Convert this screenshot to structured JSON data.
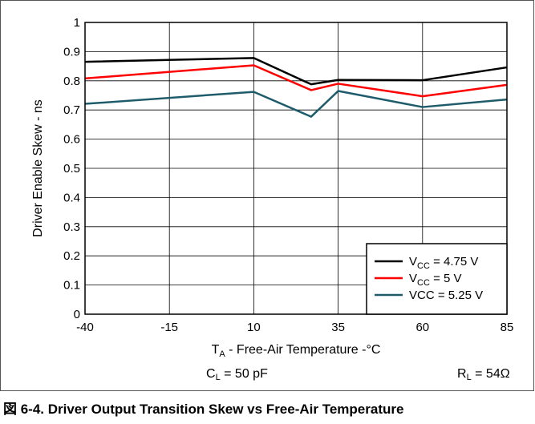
{
  "chart_data": {
    "type": "line",
    "title": "",
    "xlabel": {
      "main": "T",
      "sub": "A",
      "rest": " - Free-Air Temperature -°C"
    },
    "ylabel": "Driver Enable Skew - ns",
    "x": [
      -40,
      10,
      27,
      35,
      60,
      85
    ],
    "xticks": [
      -40,
      -15,
      10,
      35,
      60,
      85
    ],
    "yticks": [
      0,
      0.1,
      0.2,
      0.3,
      0.4,
      0.5,
      0.6,
      0.7,
      0.8,
      0.9,
      1
    ],
    "xlim": [
      -40,
      85
    ],
    "ylim": [
      0,
      1
    ],
    "grid": true,
    "legend_position": "bottom-right",
    "series": [
      {
        "legend": {
          "pre": "V",
          "sub": "CC",
          "post": " = 4.75 V"
        },
        "color": "#000000",
        "values": [
          0.865,
          0.878,
          0.788,
          0.803,
          0.802,
          0.846
        ]
      },
      {
        "legend": {
          "pre": "V",
          "sub": "CC",
          "post": " = 5 V"
        },
        "color": "#ff0000",
        "values": [
          0.808,
          0.853,
          0.768,
          0.79,
          0.747,
          0.786
        ]
      },
      {
        "legend": {
          "pre": "",
          "sub": "",
          "post": "VCC = 5.25 V"
        },
        "color": "#1f5c6b",
        "values": [
          0.721,
          0.762,
          0.677,
          0.765,
          0.71,
          0.736
        ]
      }
    ]
  },
  "conditions": {
    "cl": {
      "main": "C",
      "sub": "L",
      "rest": " = 50 pF"
    },
    "rl": {
      "main": "R",
      "sub": "L",
      "rest": " = 54Ω"
    }
  },
  "caption": {
    "prefix": "図",
    "text": " 6-4. Driver Output Transition Skew vs Free-Air Temperature"
  }
}
